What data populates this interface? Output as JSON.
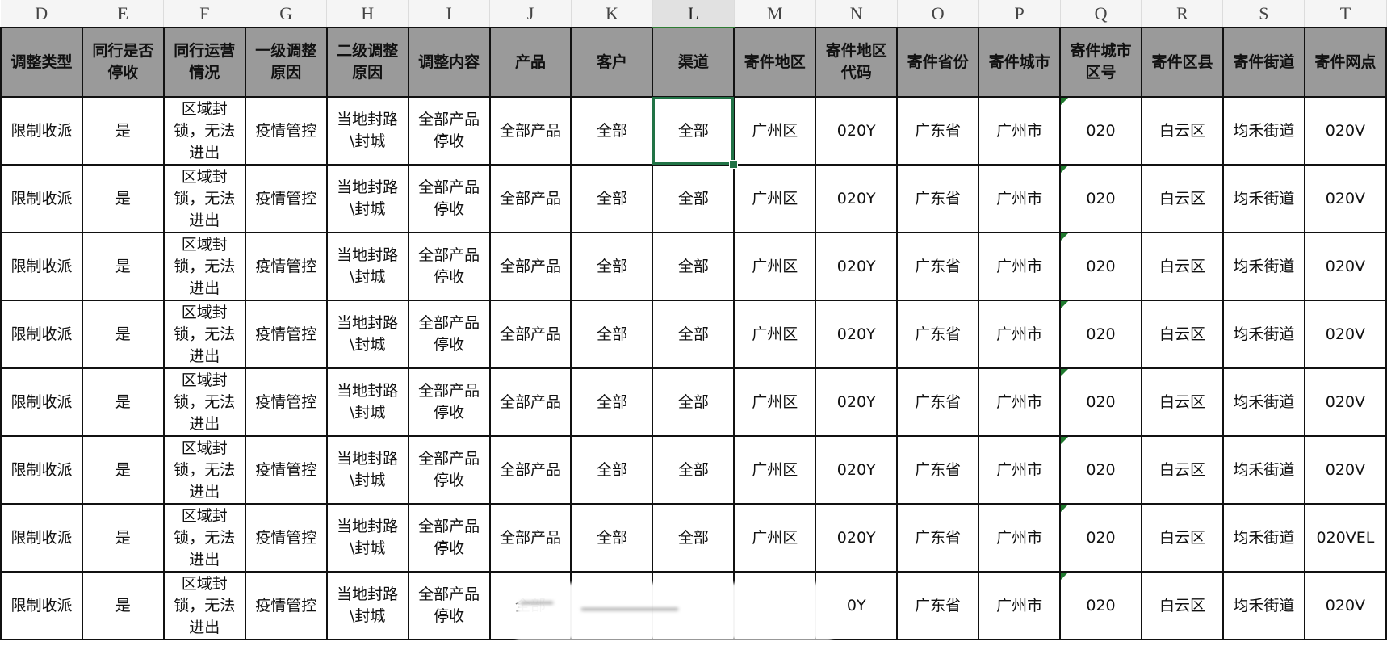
{
  "column_letters": [
    "D",
    "E",
    "F",
    "G",
    "H",
    "I",
    "J",
    "K",
    "L",
    "M",
    "N",
    "O",
    "P",
    "Q",
    "R",
    "S",
    "T"
  ],
  "selected_column": "L",
  "headers": [
    "调整类型",
    "同行是否\n停收",
    "同行运营\n情况",
    "一级调整\n原因",
    "二级调整\n原因",
    "调整内容",
    "产品",
    "客户",
    "渠道",
    "寄件地区",
    "寄件地区\n代码",
    "寄件省份",
    "寄件城市",
    "寄件城市\n区号",
    "寄件区县",
    "寄件街道",
    "寄件网点"
  ],
  "rows": [
    [
      "限制收派",
      "是",
      "区域封\n锁，无法\n进出",
      "疫情管控",
      "当地封路\n\\封城",
      "全部产品\n停收",
      "全部产品",
      "全部",
      "全部",
      "广州区",
      "020Y",
      "广东省",
      "广州市",
      "020",
      "白云区",
      "均禾街道",
      "020V"
    ],
    [
      "限制收派",
      "是",
      "区域封\n锁，无法\n进出",
      "疫情管控",
      "当地封路\n\\封城",
      "全部产品\n停收",
      "全部产品",
      "全部",
      "全部",
      "广州区",
      "020Y",
      "广东省",
      "广州市",
      "020",
      "白云区",
      "均禾街道",
      "020V"
    ],
    [
      "限制收派",
      "是",
      "区域封\n锁，无法\n进出",
      "疫情管控",
      "当地封路\n\\封城",
      "全部产品\n停收",
      "全部产品",
      "全部",
      "全部",
      "广州区",
      "020Y",
      "广东省",
      "广州市",
      "020",
      "白云区",
      "均禾街道",
      "020V"
    ],
    [
      "限制收派",
      "是",
      "区域封\n锁，无法\n进出",
      "疫情管控",
      "当地封路\n\\封城",
      "全部产品\n停收",
      "全部产品",
      "全部",
      "全部",
      "广州区",
      "020Y",
      "广东省",
      "广州市",
      "020",
      "白云区",
      "均禾街道",
      "020V"
    ],
    [
      "限制收派",
      "是",
      "区域封\n锁，无法\n进出",
      "疫情管控",
      "当地封路\n\\封城",
      "全部产品\n停收",
      "全部产品",
      "全部",
      "全部",
      "广州区",
      "020Y",
      "广东省",
      "广州市",
      "020",
      "白云区",
      "均禾街道",
      "020V"
    ],
    [
      "限制收派",
      "是",
      "区域封\n锁，无法\n进出",
      "疫情管控",
      "当地封路\n\\封城",
      "全部产品\n停收",
      "全部产品",
      "全部",
      "全部",
      "广州区",
      "020Y",
      "广东省",
      "广州市",
      "020",
      "白云区",
      "均禾街道",
      "020V"
    ],
    [
      "限制收派",
      "是",
      "区域封\n锁，无法\n进出",
      "疫情管控",
      "当地封路\n\\封城",
      "全部产品\n停收",
      "全部产品",
      "全部",
      "全部",
      "广州区",
      "020Y",
      "广东省",
      "广州市",
      "020",
      "白云区",
      "均禾街道",
      "020VEL"
    ],
    [
      "限制收派",
      "是",
      "区域封\n锁，无法\n进出",
      "疫情管控",
      "当地封路\n\\封城",
      "全部产品\n停收",
      "全部",
      "",
      "",
      "",
      "0Y",
      "广东省",
      "广州市",
      "020",
      "白云区",
      "均禾街道",
      "020V"
    ]
  ],
  "active_cell": "L2",
  "colors": {
    "header_bg": "#9a9a9a",
    "selection": "#217346",
    "text_number_flag": "#1f7a2e"
  }
}
